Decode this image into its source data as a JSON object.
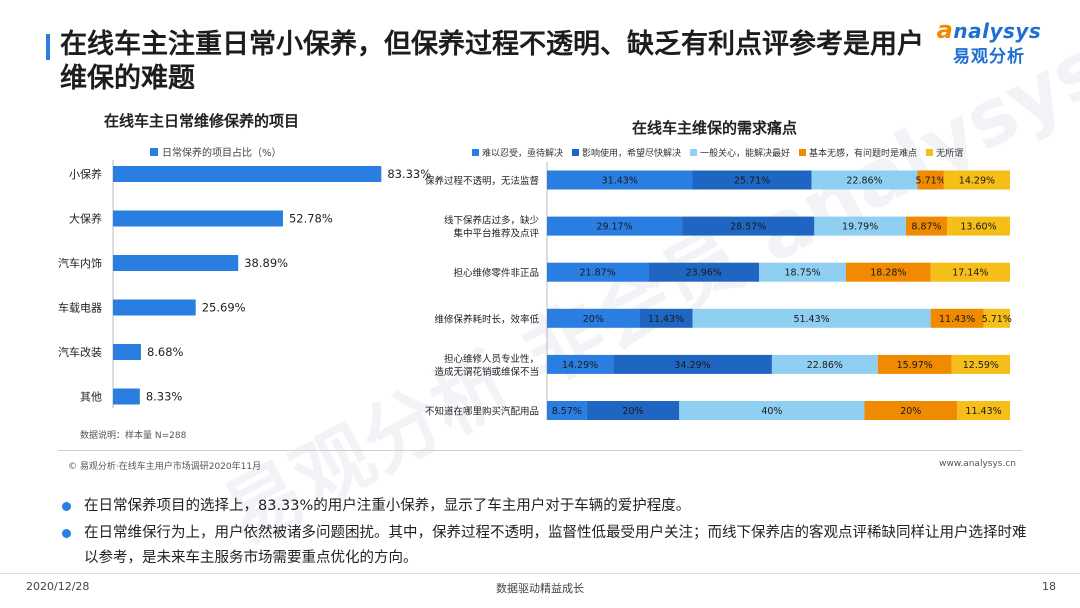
{
  "slide": {
    "title": "在线车主注重日常小保养，但保养过程不透明、缺乏有利点评参考是用户维保的难题",
    "logo_en_initial": "a",
    "logo_en_rest": "nalysys",
    "logo_cn": "易观分析",
    "watermark": "易观分析 非会员 analysys",
    "note": "数据说明：样本量 N=288",
    "source": "© 易观分析·在线车主用户市场调研2020年11月",
    "website": "www.analysys.cn",
    "bullets": [
      "在日常保养项目的选择上，83.33%的用户注重小保养，显示了车主用户对于车辆的爱护程度。",
      "在日常维保行为上，用户依然被诸多问题困扰。其中，保养过程不透明，监督性低最受用户关注；而线下保养店的客观点评稀缺同样让用户选择时难以参考，是未来车主服务市场需要重点优化的方向。"
    ],
    "footer_date": "2020/12/28",
    "footer_center": "数据驱动精益成长",
    "page_number": "18"
  },
  "chart_data": [
    {
      "type": "bar",
      "orientation": "horizontal",
      "title": "在线车主日常维修保养的项目",
      "categories": [
        "小保养",
        "大保养",
        "汽车内饰",
        "车载电器",
        "汽车改装",
        "其他"
      ],
      "series": [
        {
          "name": "日常保养的项目占比（%）",
          "values": [
            83.33,
            52.78,
            38.89,
            25.69,
            8.68,
            8.33
          ],
          "color": "#2a7de1"
        }
      ],
      "value_labels": [
        "83.33%",
        "52.78%",
        "38.89%",
        "25.69%",
        "8.68%",
        "8.33%"
      ],
      "xlim": [
        0,
        100
      ],
      "grid": false
    },
    {
      "type": "bar",
      "orientation": "horizontal",
      "stacked": true,
      "title": "在线车主维保的需求痛点",
      "categories": [
        [
          "保养过程不透明，无法监督"
        ],
        [
          "线下保养店过多，缺少",
          "集中平台推荐及点评"
        ],
        [
          "担心维修零件非正品"
        ],
        [
          "维修保养耗时长，效率低"
        ],
        [
          "担心维修人员专业性，",
          "造成无谓花销或维保不当"
        ],
        [
          "不知道在哪里购买汽配用品"
        ]
      ],
      "series": [
        {
          "name": "难以忍受，亟待解决",
          "color": "#2a7de1",
          "values": [
            31.43,
            29.17,
            21.87,
            20,
            14.29,
            8.57
          ],
          "labels": [
            "31.43%",
            "29.17%",
            "21.87%",
            "20%",
            "14.29%",
            "8.57%"
          ]
        },
        {
          "name": "影响使用，希望尽快解决",
          "color": "#1f66c2",
          "values": [
            25.71,
            28.57,
            23.96,
            11.43,
            34.29,
            20
          ],
          "labels": [
            "25.71%",
            "28.57%",
            "23.96%",
            "11.43%",
            "34.29%",
            "20%"
          ]
        },
        {
          "name": "一般关心，能解决最好",
          "color": "#8fd0f2",
          "values": [
            22.86,
            19.79,
            18.75,
            51.43,
            22.86,
            40
          ],
          "labels": [
            "22.86%",
            "19.79%",
            "18.75%",
            "51.43%",
            "22.86%",
            "40%"
          ]
        },
        {
          "name": "基本无感，有问题时是难点",
          "color": "#f08a00",
          "values": [
            5.71,
            8.87,
            18.28,
            11.43,
            15.97,
            20
          ],
          "labels": [
            "5.71%",
            "8.87%",
            "18.28%",
            "11.43%",
            "15.97%",
            "20%"
          ]
        },
        {
          "name": "无所谓",
          "color": "#f6be19",
          "values": [
            14.29,
            13.6,
            17.14,
            5.71,
            12.59,
            11.43
          ],
          "labels": [
            "14.29%",
            "13.60%",
            "17.14%",
            "5.71%",
            "12.59%",
            "11.43%"
          ]
        }
      ],
      "xlim": [
        0,
        100
      ],
      "legend": "top",
      "grid": false
    }
  ]
}
